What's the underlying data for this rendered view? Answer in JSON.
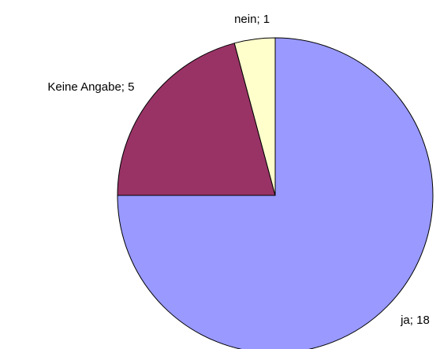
{
  "chart_data": {
    "type": "pie",
    "categories": [
      "ja",
      "Keine Angabe",
      "nein"
    ],
    "values": [
      18,
      5,
      1
    ],
    "value_labels": [
      "ja; 18",
      "Keine Angabe; 5",
      "nein; 1"
    ],
    "colors": [
      "#9999ff",
      "#993366",
      "#ffffcc"
    ]
  }
}
